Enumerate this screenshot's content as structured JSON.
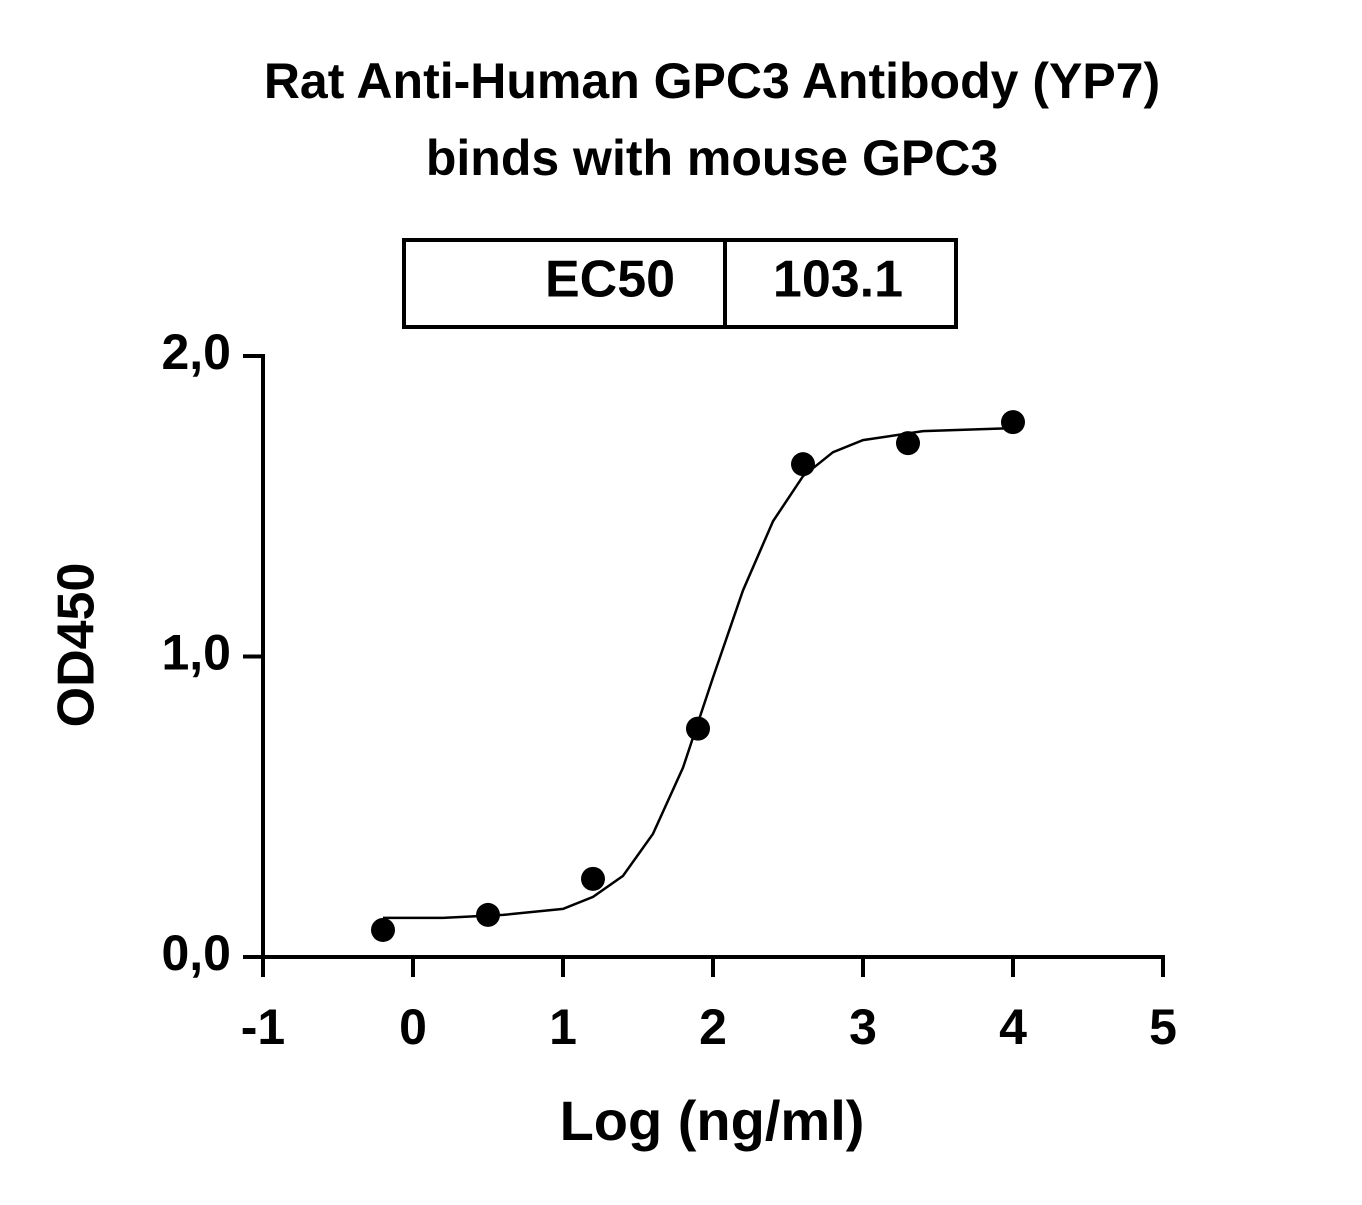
{
  "chart_data": {
    "type": "scatter",
    "title": [
      "Rat Anti-Human GPC3 Antibody (YP7)",
      "binds with mouse GPC3"
    ],
    "x_label": "Log (ng/ml)",
    "y_label": "OD450",
    "ec50_table": [
      "EC50",
      "103.1"
    ],
    "x": [
      -0.2,
      0.5,
      1.2,
      1.9,
      2.6,
      3.3,
      4.0
    ],
    "values": [
      0.09,
      0.14,
      0.26,
      0.76,
      1.64,
      1.71,
      1.78
    ],
    "fit": {
      "x": [
        -0.2,
        0.2,
        0.6,
        1.0,
        1.2,
        1.4,
        1.6,
        1.8,
        2.0,
        2.2,
        2.4,
        2.6,
        2.8,
        3.0,
        3.4,
        4.0
      ],
      "values": [
        0.13,
        0.13,
        0.14,
        0.16,
        0.2,
        0.27,
        0.41,
        0.63,
        0.93,
        1.22,
        1.45,
        1.6,
        1.68,
        1.72,
        1.75,
        1.76
      ]
    },
    "color": "#000000",
    "xlim": [
      -1,
      5
    ],
    "xticks": [
      -1,
      0,
      1,
      2,
      3,
      4,
      5
    ],
    "ylim": [
      0,
      2
    ],
    "yticks": [
      {
        "value": 0,
        "label": "0,0"
      },
      {
        "value": 1,
        "label": "1,0"
      },
      {
        "value": 2,
        "label": "2,0"
      }
    ]
  }
}
